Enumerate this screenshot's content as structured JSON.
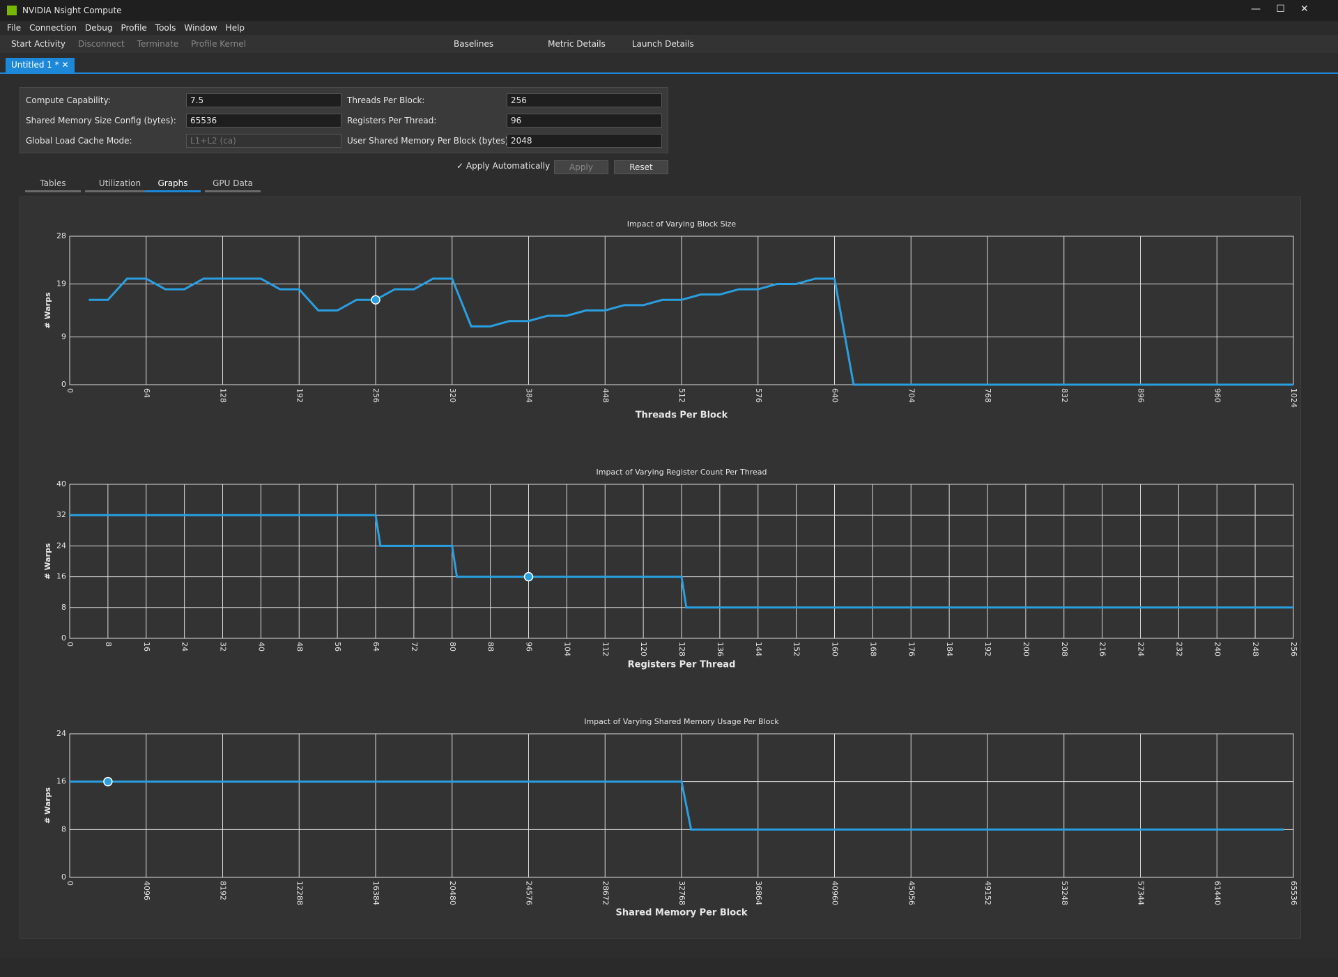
{
  "window": {
    "title": "NVIDIA Nsight Compute"
  },
  "menu": [
    "File",
    "Connection",
    "Debug",
    "Profile",
    "Tools",
    "Window",
    "Help"
  ],
  "toolbar": [
    "Start Activity",
    "Disconnect",
    "Terminate",
    "Profile Kernel",
    "Baselines",
    "Metric Details",
    "Launch Details"
  ],
  "document_tab": "Untitled 1 *",
  "form": [
    {
      "label": "Compute Capability:",
      "value": "7.5"
    },
    {
      "label": "Shared Memory Size Config (bytes):",
      "value": "65536"
    },
    {
      "label": "Global Load Cache Mode:",
      "value": "L1+L2 (ca)"
    },
    {
      "label": "Threads Per Block:",
      "value": "256"
    },
    {
      "label": "Registers Per Thread:",
      "value": "96"
    },
    {
      "label": "User Shared Memory Per Block (bytes):",
      "value": "2048"
    }
  ],
  "apply": {
    "checkbox": "Apply Automatically",
    "buttons": [
      "Apply",
      "Reset"
    ]
  },
  "view_tabs": [
    "Tables",
    "Utilization",
    "Graphs",
    "GPU Data"
  ],
  "active_tab": 2,
  "chart_data": [
    {
      "type": "line",
      "title": "Impact of Varying Block Size",
      "xlabel": "Threads Per Block",
      "ylabel": "# Warps",
      "color": "#2a9fe0",
      "x": [
        16,
        32,
        48,
        64,
        80,
        96,
        112,
        128,
        144,
        160,
        176,
        192,
        208,
        224,
        240,
        256,
        272,
        288,
        304,
        320,
        336,
        352,
        368,
        384,
        400,
        416,
        432,
        448,
        464,
        480,
        496,
        512,
        528,
        544,
        560,
        576,
        592,
        608,
        624,
        640,
        656,
        672,
        688,
        704,
        720,
        736,
        752,
        768,
        784,
        800,
        816,
        832,
        848,
        864,
        880,
        896,
        912,
        928,
        944,
        960,
        976,
        992,
        1008,
        1024
      ],
      "values": [
        16,
        16,
        20,
        20,
        18,
        18,
        20,
        20,
        20,
        20,
        18,
        18,
        14,
        14,
        16,
        16,
        18,
        18,
        20,
        20,
        11,
        11,
        12,
        12,
        13,
        13,
        14,
        14,
        15,
        15,
        16,
        16,
        17,
        17,
        18,
        18,
        19,
        19,
        20,
        20,
        0,
        0,
        0,
        0,
        0,
        0,
        0,
        0,
        0,
        0,
        0,
        0,
        0,
        0,
        0,
        0,
        0,
        0,
        0,
        0,
        0,
        0,
        0,
        0
      ],
      "current": {
        "x": 256,
        "y": 16
      },
      "xlim": [
        0,
        1024
      ],
      "xticks": [
        0,
        64,
        128,
        192,
        256,
        320,
        384,
        448,
        512,
        576,
        640,
        704,
        768,
        832,
        896,
        960,
        1024
      ],
      "ylim": [
        0,
        28
      ],
      "yticks": [
        0,
        9,
        19,
        28
      ],
      "grid": true
    },
    {
      "type": "line",
      "title": "Impact of Varying Register Count Per Thread",
      "xlabel": "Registers Per Thread",
      "ylabel": "# Warps",
      "color": "#2a9fe0",
      "x": [
        0,
        64,
        65,
        80,
        81,
        128,
        129,
        256
      ],
      "values": [
        32,
        32,
        24,
        24,
        16,
        16,
        8,
        8
      ],
      "current": {
        "x": 96,
        "y": 16
      },
      "xlim": [
        0,
        256
      ],
      "xticks": [
        0,
        8,
        16,
        24,
        32,
        40,
        48,
        56,
        64,
        72,
        80,
        88,
        96,
        104,
        112,
        120,
        128,
        136,
        144,
        152,
        160,
        168,
        176,
        184,
        192,
        200,
        208,
        216,
        224,
        232,
        240,
        248,
        256
      ],
      "ylim": [
        0,
        40
      ],
      "yticks": [
        0,
        8,
        16,
        24,
        32,
        40
      ],
      "grid": true
    },
    {
      "type": "line",
      "title": "Impact of Varying Shared Memory Usage Per Block",
      "xlabel": "Shared Memory Per Block",
      "ylabel": "# Warps",
      "color": "#2a9fe0",
      "x": [
        0,
        32768,
        33280,
        65024
      ],
      "values": [
        16,
        16,
        8,
        8
      ],
      "current": {
        "x": 2048,
        "y": 16
      },
      "xlim": [
        0,
        65536
      ],
      "xticks": [
        0,
        4096,
        8192,
        12288,
        16384,
        20480,
        24576,
        28672,
        32768,
        36864,
        40960,
        45056,
        49152,
        53248,
        57344,
        61440,
        65536
      ],
      "ylim": [
        0,
        24
      ],
      "yticks": [
        0,
        8,
        16,
        24
      ],
      "grid": true
    }
  ]
}
